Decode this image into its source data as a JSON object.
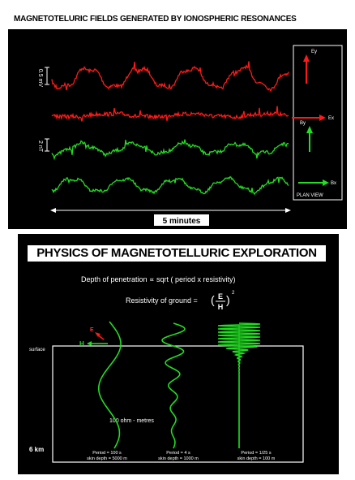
{
  "top": {
    "title": "MAGNETOTELURIC FIELDS GENERATED BY IONOSPHERIC RESONANCES",
    "scale_e": "0.5 mV",
    "scale_h": "2 nT",
    "time_label": "5 minutes",
    "plan_view": {
      "ey": "Ey",
      "ex": "Ex",
      "by": "By",
      "bx": "Bx",
      "caption": "PLAN VIEW"
    },
    "colors": {
      "electric": "#ff1a1a",
      "magnetic": "#22dd22"
    }
  },
  "bottom": {
    "title": "PHYSICS OF MAGNETOTELLURIC EXPLORATION",
    "formula1_text": "Depth of penetration   ∝ sqrt ( period x resistivity)",
    "formula2_text": "Resistivity of ground  = ",
    "fraction_num": "E",
    "fraction_den": "H",
    "exponent": "2",
    "e_label": "E",
    "h_label": "H",
    "surface_label": "surface",
    "depth_label": "6 km",
    "medium_label": "100 ohm - metres",
    "periods": [
      {
        "period": "Period = 100 s",
        "depth": "skin depth = 5000 m"
      },
      {
        "period": "Period = 4 s",
        "depth": "skin depth = 1000 m"
      },
      {
        "period": "Period = 1/25 s",
        "depth": "skin depth = 100 m"
      }
    ]
  }
}
